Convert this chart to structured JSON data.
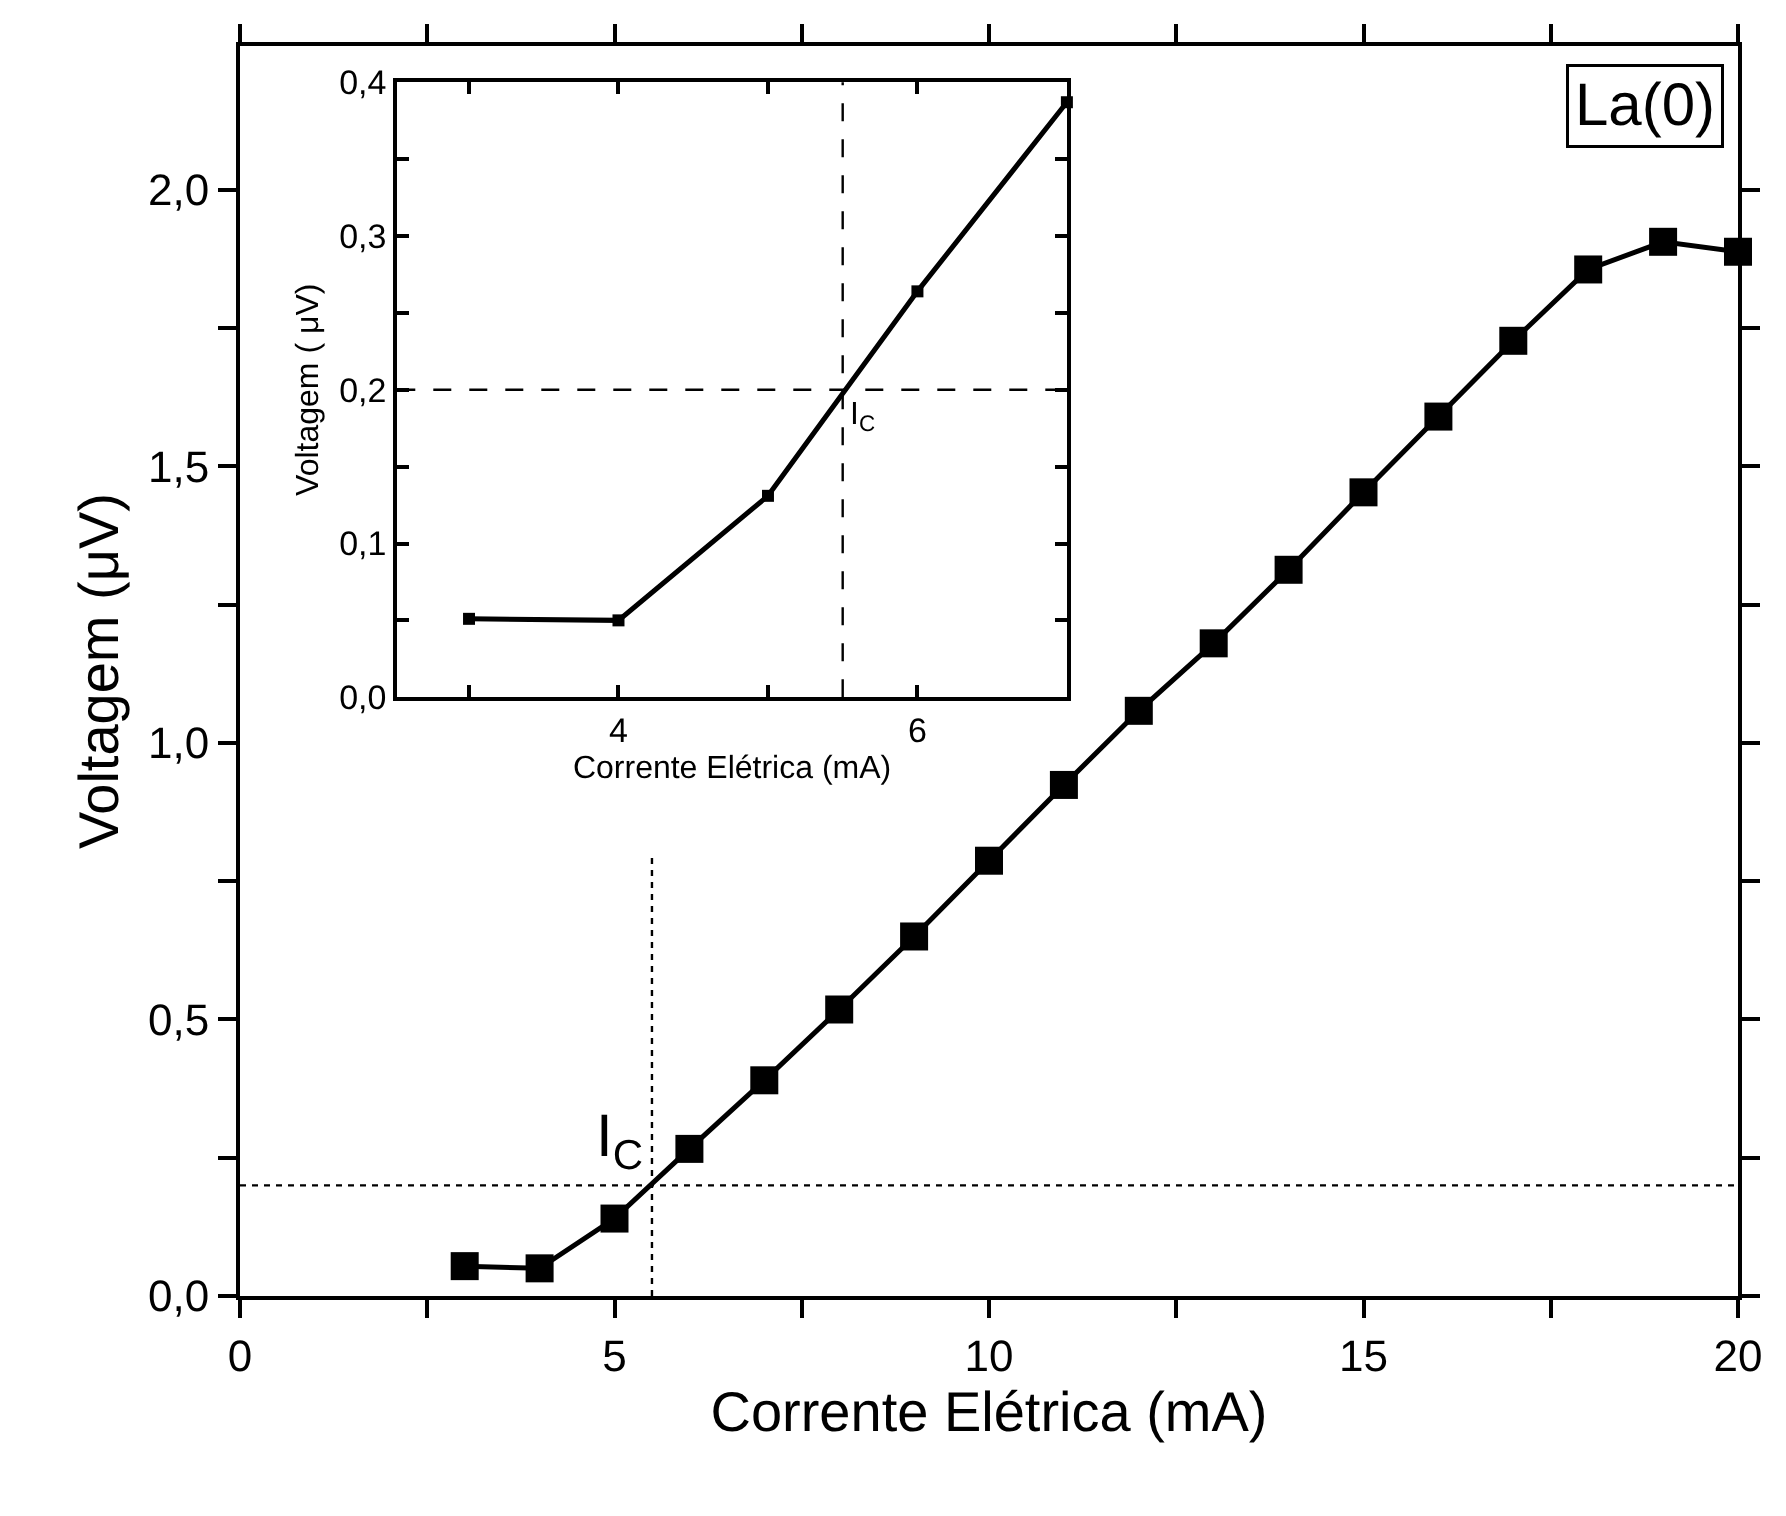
{
  "chart_data": [
    {
      "type": "line",
      "xlabel": "Corrente Elétrica (mA)",
      "ylabel": "Voltagem (μV)",
      "marker": "square",
      "line_style": "solid",
      "grid": false,
      "x": [
        3,
        4,
        5,
        6,
        7,
        8,
        9,
        10,
        11,
        12,
        13,
        14,
        15,
        16,
        17,
        18,
        19,
        20
      ],
      "series": [
        {
          "color": "#000000",
          "values": [
            0.054,
            0.05,
            0.14,
            0.266,
            0.39,
            0.518,
            0.65,
            0.787,
            0.924,
            1.058,
            1.18,
            1.313,
            1.453,
            1.59,
            1.727,
            1.856,
            1.906,
            1.888
          ]
        }
      ],
      "xlim": [
        0,
        20
      ],
      "ylim": [
        0,
        2.26
      ],
      "xticks": [
        0,
        {
          "value": 2.5,
          "label": null
        },
        5,
        {
          "value": 7.5,
          "label": null
        },
        10,
        {
          "value": 12.5,
          "label": null
        },
        15,
        {
          "value": 17.5,
          "label": null
        },
        20
      ],
      "yticks": [
        {
          "value": 0,
          "label": "0,0"
        },
        {
          "value": 0.25,
          "label": null
        },
        {
          "value": 0.5,
          "label": "0,5"
        },
        {
          "value": 0.75,
          "label": null
        },
        {
          "value": 1.0,
          "label": "1,0"
        },
        {
          "value": 1.25,
          "label": null
        },
        {
          "value": 1.5,
          "label": "1,5"
        },
        {
          "value": 1.75,
          "label": null
        },
        {
          "value": 2.0,
          "label": "2,0"
        }
      ],
      "ref_lines": [
        {
          "axis": "x",
          "value": 5.5,
          "line_style": "dotted",
          "color": "#000000"
        },
        {
          "axis": "y",
          "value": 0.2,
          "line_style": "dotted",
          "color": "#000000"
        }
      ],
      "annotations": [
        {
          "text": "I$_{C}$",
          "x": 5.5,
          "y": 0.2
        },
        "La(0)"
      ]
    },
    {
      "type": "line",
      "xlabel": "Corrente Elétrica (mA)",
      "ylabel": "Voltagem ( μV)",
      "marker": "square",
      "line_style": "solid",
      "grid": false,
      "x": [
        3,
        4,
        5,
        6,
        7
      ],
      "series": [
        {
          "color": "#000000",
          "values": [
            0.051,
            0.05,
            0.131,
            0.264,
            0.387
          ]
        }
      ],
      "xlim": [
        2.52,
        7
      ],
      "ylim": [
        0,
        0.4
      ],
      "xticks": [
        {
          "value": 3,
          "label": null
        },
        4,
        {
          "value": 5,
          "label": null
        },
        6,
        {
          "value": 7,
          "label": null
        }
      ],
      "yticks": [
        {
          "value": 0,
          "label": "0,0"
        },
        {
          "value": 0.05,
          "label": null
        },
        {
          "value": 0.1,
          "label": "0,1"
        },
        {
          "value": 0.15,
          "label": null
        },
        {
          "value": 0.2,
          "label": "0,2"
        },
        {
          "value": 0.25,
          "label": null
        },
        {
          "value": 0.3,
          "label": "0,3"
        },
        {
          "value": 0.35,
          "label": null
        },
        {
          "value": 0.4,
          "label": "0,4"
        }
      ],
      "ref_lines": [
        {
          "axis": "x",
          "value": 5.5,
          "line_style": "dashed",
          "color": "#000000"
        },
        {
          "axis": "y",
          "value": 0.2,
          "line_style": "dashed",
          "color": "#000000"
        }
      ],
      "annotations": [
        {
          "text": "I$_{C}$",
          "x": 5.5,
          "y": 0.2
        }
      ]
    }
  ]
}
